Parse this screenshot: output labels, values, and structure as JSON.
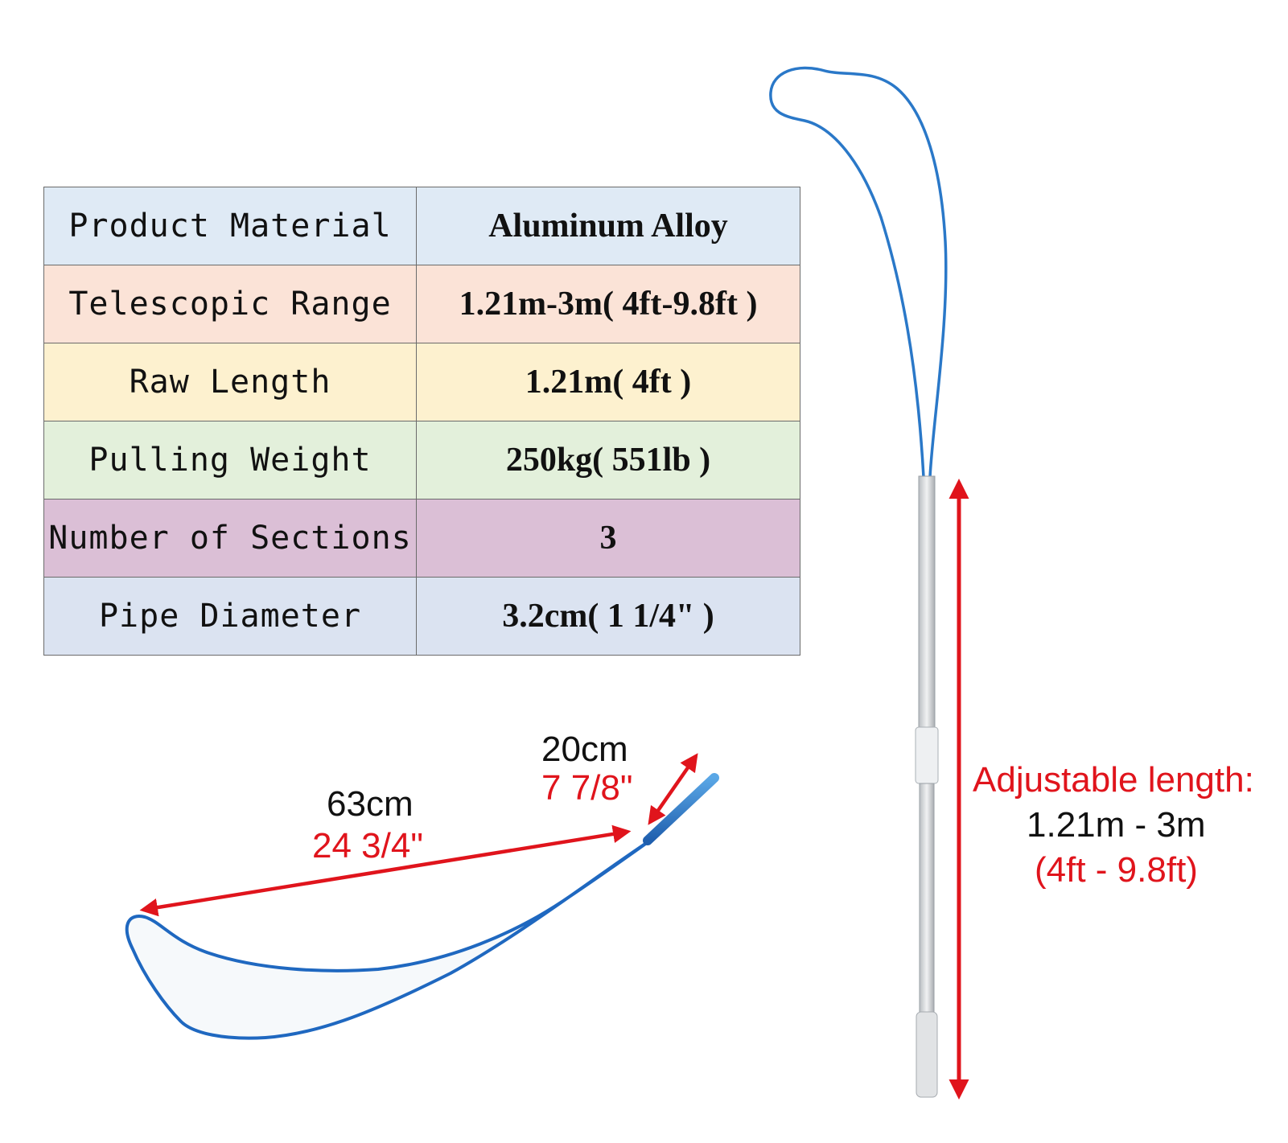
{
  "specs": [
    {
      "label": "Product Material",
      "value": "Aluminum Alloy",
      "bg": "#dfeaf5"
    },
    {
      "label": "Telescopic Range",
      "value": "1.21m-3m( 4ft-9.8ft )",
      "bg": "#fbe3d7"
    },
    {
      "label": "Raw Length",
      "value": "1.21m( 4ft )",
      "bg": "#fdf1cf"
    },
    {
      "label": "Pulling Weight",
      "value": "250kg( 551lb )",
      "bg": "#e3f0db"
    },
    {
      "label": "Number of Sections",
      "value": "3",
      "bg": "#dbbfd6"
    },
    {
      "label": "Pipe Diameter",
      "value": "3.2cm( 1 1/4\" )",
      "bg": "#dbe3f1"
    }
  ],
  "dimensions": {
    "hoop_length_metric": "63cm",
    "hoop_length_imperial": "24 3/4\"",
    "handle_length_metric": "20cm",
    "handle_length_imperial": "7 7/8\"",
    "adjustable_title": "Adjustable length:",
    "adjustable_metric": "1.21m - 3m",
    "adjustable_imperial": "(4ft - 9.8ft)"
  },
  "colors": {
    "arrow": "#e0141c",
    "loop": "#2a78c8",
    "pole": "#d7dadd"
  }
}
